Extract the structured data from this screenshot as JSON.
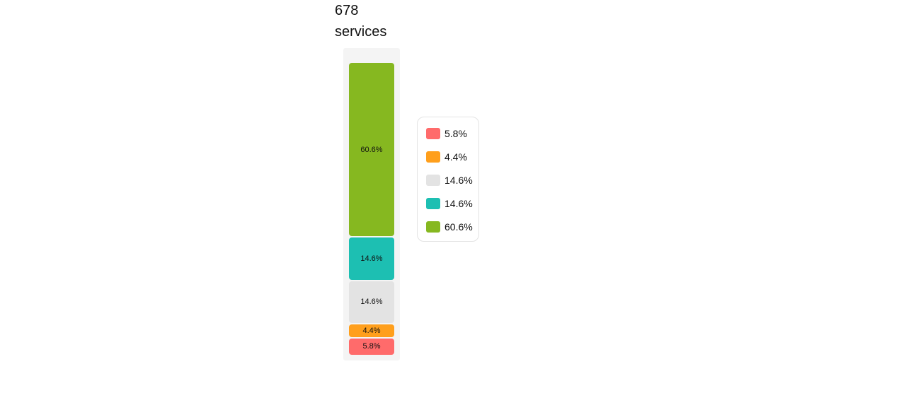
{
  "title": {
    "count": "678",
    "unit": "services"
  },
  "chart_data": {
    "type": "bar",
    "stacked": true,
    "orientation": "vertical",
    "title": "678 services",
    "total": 678,
    "segments": [
      {
        "label": "5.8%",
        "value": 5.8,
        "color": "#ff6b6b"
      },
      {
        "label": "4.4%",
        "value": 4.4,
        "color": "#ff9f1c"
      },
      {
        "label": "14.6%",
        "value": 14.6,
        "color": "#e3e3e3"
      },
      {
        "label": "14.6%",
        "value": 14.6,
        "color": "#1dbfb2"
      },
      {
        "label": "60.6%",
        "value": 60.6,
        "color": "#86b820"
      }
    ],
    "legend_position": "right",
    "grid": false
  }
}
